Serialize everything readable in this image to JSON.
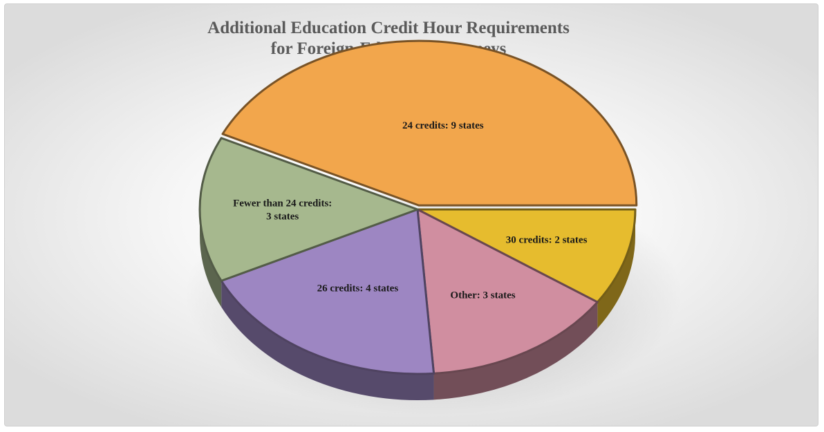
{
  "chart_data": {
    "type": "pie",
    "title": "Additional Education Credit Hour Requirements",
    "subtitle": "for Foreign-Educated Attorneys",
    "slices": [
      {
        "label_lines": [
          "30 credits: 2  states"
        ],
        "category": "30 credits",
        "value": 2,
        "color": "#e6bc2e"
      },
      {
        "label_lines": [
          "Other: 3  states"
        ],
        "category": "Other",
        "value": 3,
        "color": "#d08ea0"
      },
      {
        "label_lines": [
          "26 credits: 4  states"
        ],
        "category": "26 credits",
        "value": 4,
        "color": "#9d86c2"
      },
      {
        "label_lines": [
          "Fewer than 24 credits:",
          "3  states"
        ],
        "category": "Fewer than 24 credits",
        "value": 3,
        "color": "#a6b88e"
      },
      {
        "label_lines": [
          "24 credits: 9  states"
        ],
        "category": "24 credits",
        "value": 9,
        "color": "#f2a64c"
      }
    ]
  }
}
